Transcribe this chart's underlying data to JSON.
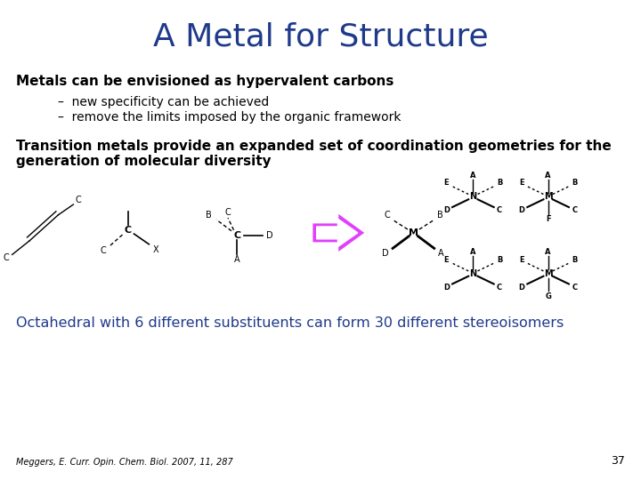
{
  "title": "A Metal for Structure",
  "title_color": "#1F3A8A",
  "title_fontsize": 26,
  "bg_color": "#FFFFFF",
  "bold_text_1": "Metals can be envisioned as hypervalent carbons",
  "bullet_1": "–  new specificity can be achieved",
  "bullet_2": "–  remove the limits imposed by the organic framework",
  "bold_text_2": "Transition metals provide an expanded set of coordination geometries for the\ngeneration of molecular diversity",
  "highlight_text": "Octahedral with 6 different substituents can form 30 different stereoisomers",
  "highlight_color": "#1F3A8A",
  "footer": "Meggers, E. Curr. Opin. Chem. Biol. 2007, 11, 287",
  "page_number": "37",
  "body_fontsize": 11,
  "bullet_fontsize": 10
}
